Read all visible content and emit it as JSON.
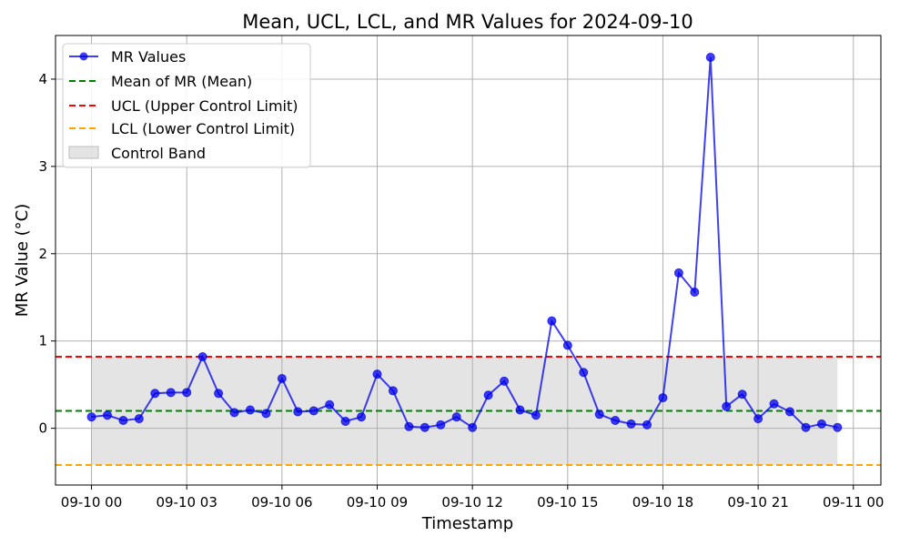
{
  "chart_data": {
    "type": "line",
    "title": "Mean, UCL, LCL, and MR Values for 2024-09-10",
    "xlabel": "Timestamp",
    "ylabel": "MR Value (°C)",
    "x_start": "2024-09-10 00:00",
    "x_interval_minutes": 30,
    "xlim": [
      "2024-09-09 22:52",
      "2024-09-11 00:52"
    ],
    "ylim": [
      -0.65,
      4.5
    ],
    "x_ticks": [
      {
        "label": "09-10 00",
        "at": "2024-09-10 00:00"
      },
      {
        "label": "09-10 03",
        "at": "2024-09-10 03:00"
      },
      {
        "label": "09-10 06",
        "at": "2024-09-10 06:00"
      },
      {
        "label": "09-10 09",
        "at": "2024-09-10 09:00"
      },
      {
        "label": "09-10 12",
        "at": "2024-09-10 12:00"
      },
      {
        "label": "09-10 15",
        "at": "2024-09-10 15:00"
      },
      {
        "label": "09-10 18",
        "at": "2024-09-10 18:00"
      },
      {
        "label": "09-10 21",
        "at": "2024-09-10 21:00"
      },
      {
        "label": "09-11 00",
        "at": "2024-09-11 00:00"
      }
    ],
    "y_ticks": [
      0,
      1,
      2,
      3,
      4
    ],
    "grid": true,
    "legend_position": "top-left",
    "series": [
      {
        "name": "MR Values",
        "kind": "line-marker",
        "color": "#0000ee",
        "values": [
          0.13,
          0.15,
          0.09,
          0.11,
          0.4,
          0.41,
          0.41,
          0.82,
          0.4,
          0.18,
          0.21,
          0.17,
          0.57,
          0.19,
          0.2,
          0.27,
          0.08,
          0.13,
          0.62,
          0.43,
          0.02,
          0.01,
          0.04,
          0.13,
          0.01,
          0.38,
          0.54,
          0.21,
          0.15,
          1.23,
          0.95,
          0.64,
          0.16,
          0.09,
          0.05,
          0.04,
          0.35,
          1.78,
          1.56,
          4.25,
          0.25,
          0.39,
          0.11,
          0.28,
          0.19,
          0.01,
          0.05,
          0.01
        ]
      },
      {
        "name": "Mean of MR (Mean)",
        "kind": "hline",
        "color": "#008000",
        "value": 0.2
      },
      {
        "name": "UCL (Upper Control Limit)",
        "kind": "hline",
        "color": "#ff0000",
        "value": 0.82
      },
      {
        "name": "LCL (Lower Control Limit)",
        "kind": "hline",
        "color": "#ffa500",
        "value": -0.42
      },
      {
        "name": "Control Band",
        "kind": "band",
        "color": "#d9d9d9",
        "from": -0.42,
        "to": 0.82
      }
    ]
  }
}
